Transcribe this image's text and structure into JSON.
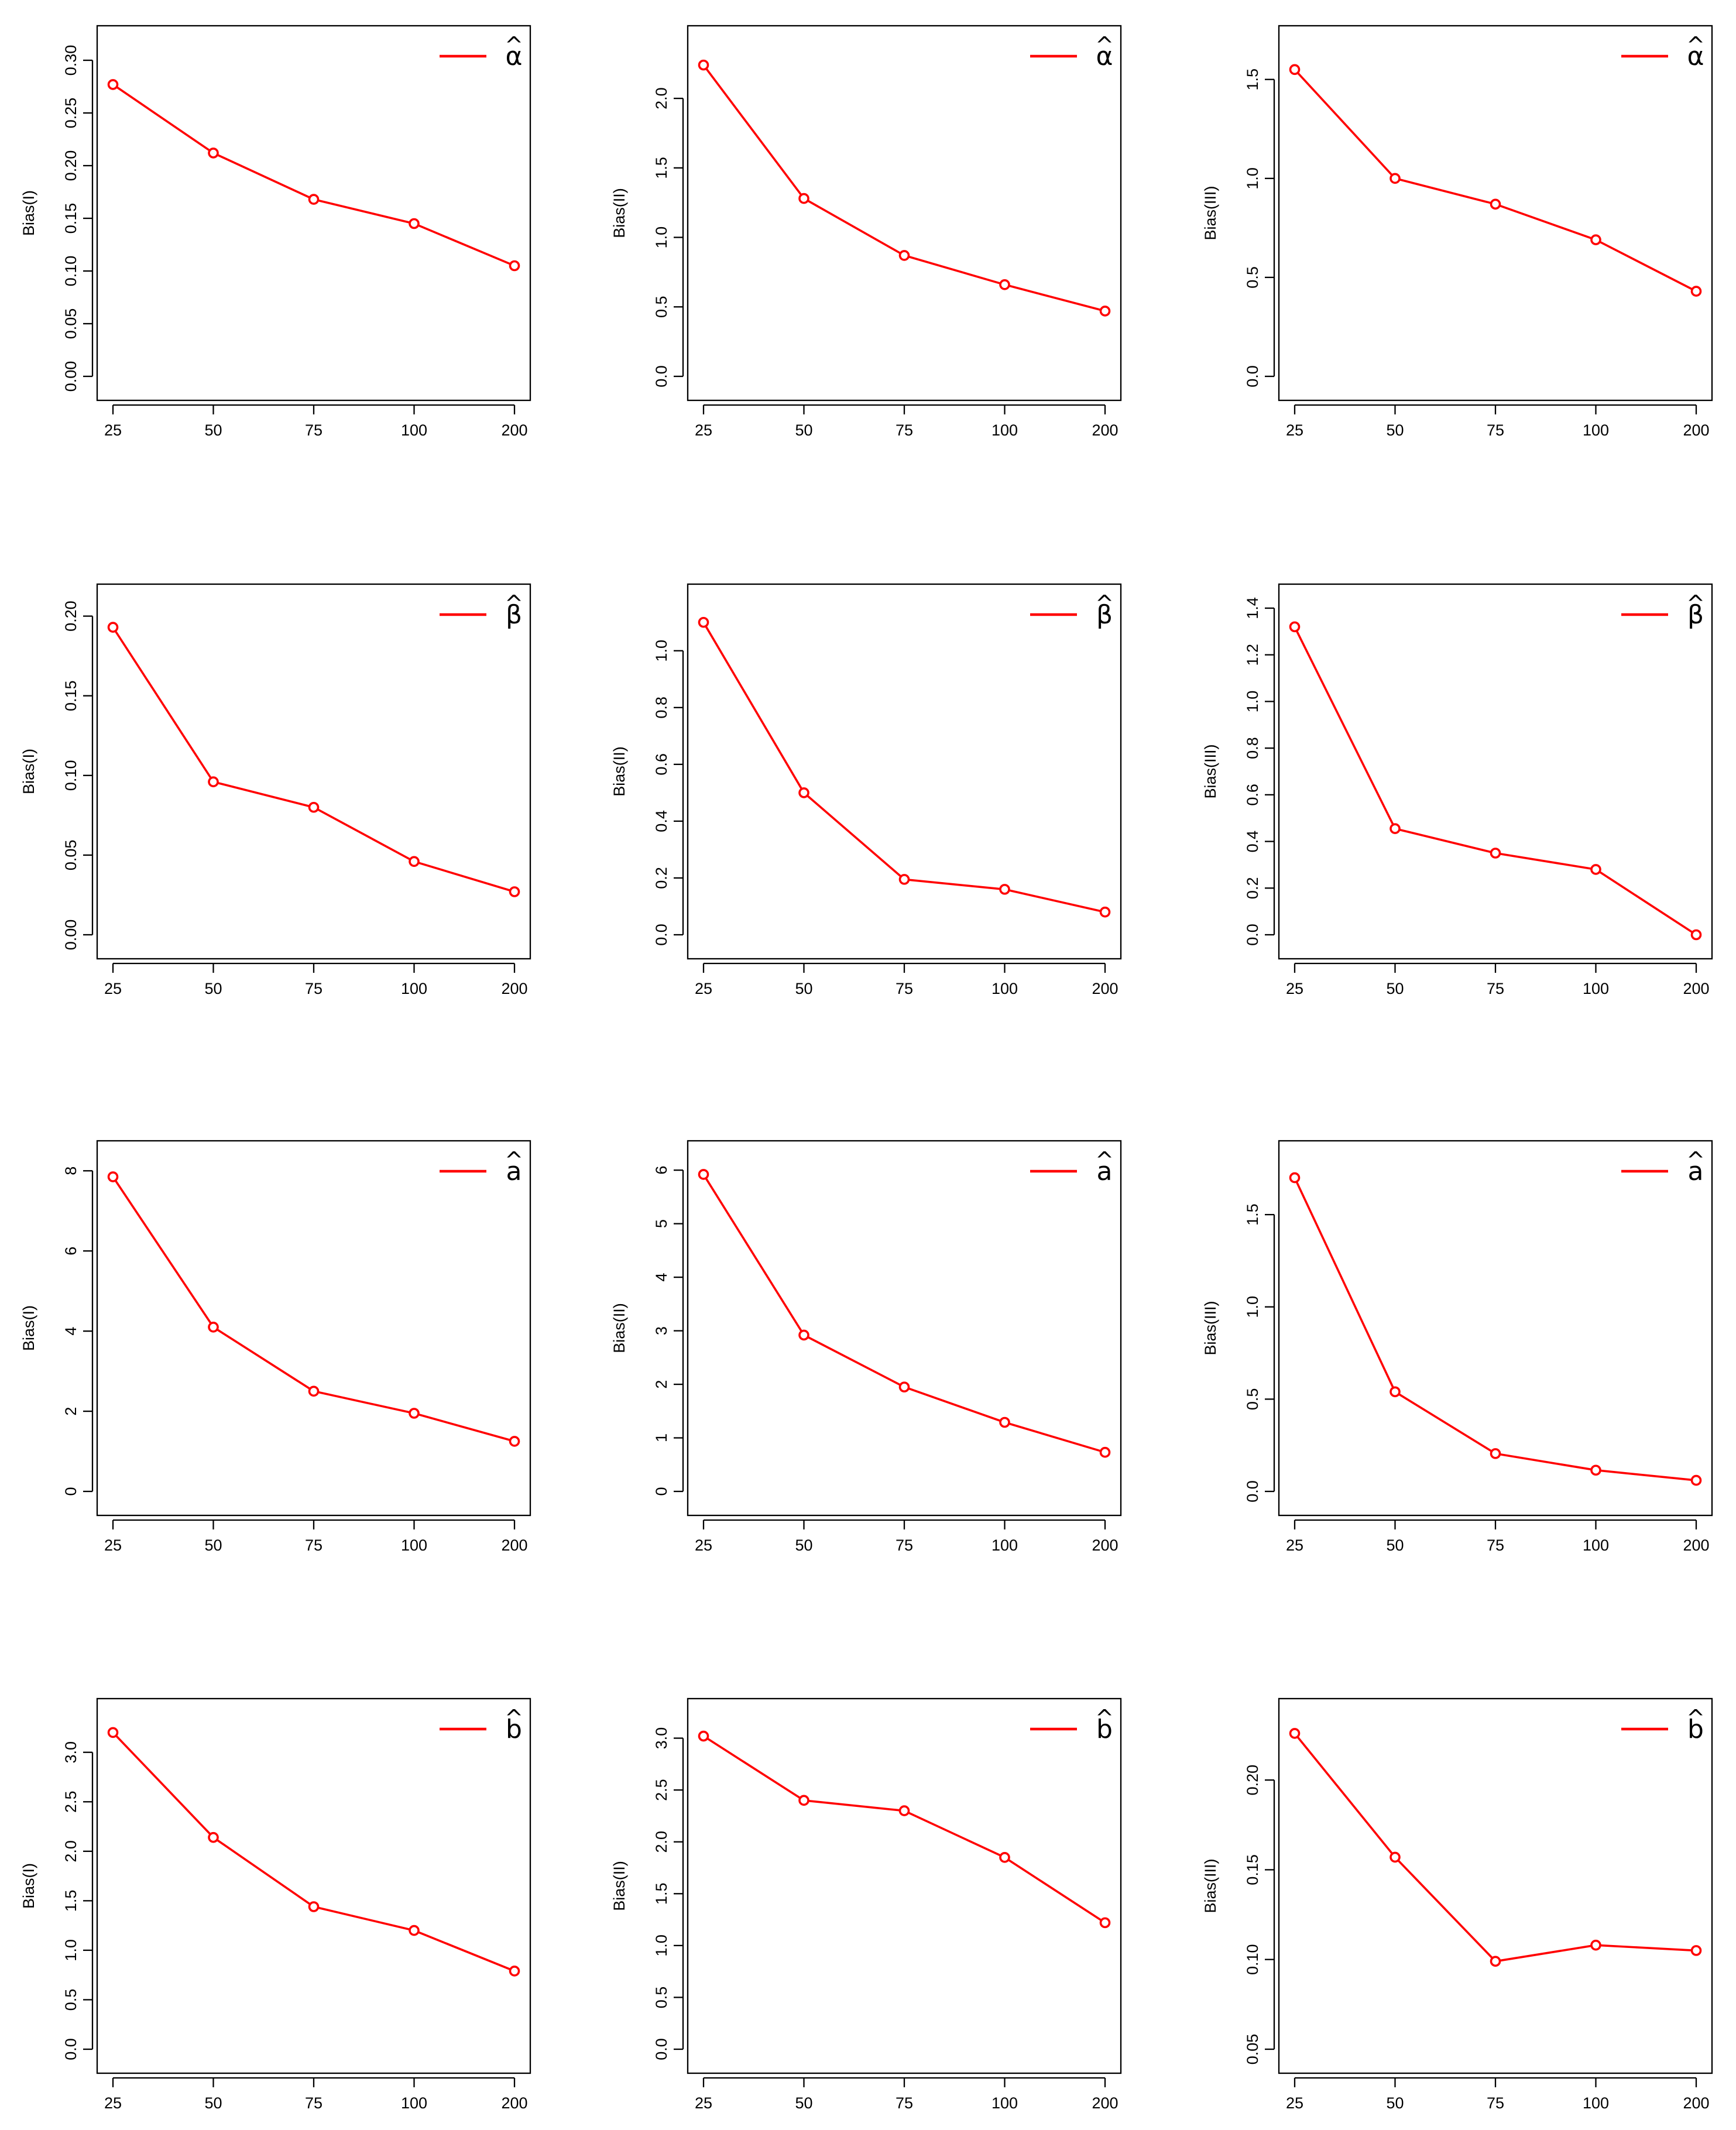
{
  "chart_data": [
    {
      "type": "line",
      "ylabel": "Bias(I)",
      "legend": "α",
      "hat": "^",
      "color": "#ff0000",
      "categories": [
        "25",
        "50",
        "75",
        "100",
        "200"
      ],
      "values": [
        0.277,
        0.212,
        0.168,
        0.145,
        0.105
      ],
      "ylim": [
        0,
        0.31
      ],
      "yticks": [
        0.0,
        0.05,
        0.1,
        0.15,
        0.2,
        0.25,
        0.3
      ],
      "ytick_labels": [
        "0.00",
        "0.05",
        "0.10",
        "0.15",
        "0.20",
        "0.25",
        "0.30"
      ]
    },
    {
      "type": "line",
      "ylabel": "Bias(II)",
      "legend": "α",
      "hat": "^",
      "color": "#ff0000",
      "categories": [
        "25",
        "50",
        "75",
        "100",
        "200"
      ],
      "values": [
        2.24,
        1.28,
        0.87,
        0.66,
        0.47
      ],
      "ylim": [
        0,
        2.35
      ],
      "yticks": [
        0.0,
        0.5,
        1.0,
        1.5,
        2.0
      ],
      "ytick_labels": [
        "0.0",
        "0.5",
        "1.0",
        "1.5",
        "2.0"
      ]
    },
    {
      "type": "line",
      "ylabel": "Bias(III)",
      "legend": "α",
      "hat": "^",
      "color": "#ff0000",
      "categories": [
        "25",
        "50",
        "75",
        "100",
        "200"
      ],
      "values": [
        1.55,
        1.0,
        0.87,
        0.69,
        0.43
      ],
      "ylim": [
        0,
        1.65
      ],
      "yticks": [
        0.0,
        0.5,
        1.0,
        1.5
      ],
      "ytick_labels": [
        "0.0",
        "0.5",
        "1.0",
        "1.5"
      ]
    },
    {
      "type": "line",
      "ylabel": "Bias(I)",
      "legend": "β",
      "hat": "^",
      "color": "#ff0000",
      "categories": [
        "25",
        "50",
        "75",
        "100",
        "200"
      ],
      "values": [
        0.193,
        0.096,
        0.08,
        0.046,
        0.027
      ],
      "ylim": [
        0,
        0.205
      ],
      "yticks": [
        0.0,
        0.05,
        0.1,
        0.15,
        0.2
      ],
      "ytick_labels": [
        "0.00",
        "0.05",
        "0.10",
        "0.15",
        "0.20"
      ]
    },
    {
      "type": "line",
      "ylabel": "Bias(II)",
      "legend": "β",
      "hat": "^",
      "color": "#ff0000",
      "categories": [
        "25",
        "50",
        "75",
        "100",
        "200"
      ],
      "values": [
        1.1,
        0.5,
        0.195,
        0.16,
        0.08
      ],
      "ylim": [
        0,
        1.15
      ],
      "yticks": [
        0.0,
        0.2,
        0.4,
        0.6,
        0.8,
        1.0
      ],
      "ytick_labels": [
        "0.0",
        "0.2",
        "0.4",
        "0.6",
        "0.8",
        "1.0"
      ]
    },
    {
      "type": "line",
      "ylabel": "Bias(III)",
      "legend": "β",
      "hat": "^",
      "color": "#ff0000",
      "categories": [
        "25",
        "50",
        "75",
        "100",
        "200"
      ],
      "values": [
        1.32,
        0.455,
        0.35,
        0.28,
        0.0
      ],
      "ylim": [
        0,
        1.4
      ],
      "yticks": [
        0.0,
        0.2,
        0.4,
        0.6,
        0.8,
        1.0,
        1.2,
        1.4
      ],
      "ytick_labels": [
        "0.0",
        "0.2",
        "0.4",
        "0.6",
        "0.8",
        "1.0",
        "1.2",
        "1.4"
      ]
    },
    {
      "type": "line",
      "ylabel": "Bias(I)",
      "legend": "a",
      "hat": "^",
      "color": "#ff0000",
      "categories": [
        "25",
        "50",
        "75",
        "100",
        "200"
      ],
      "values": [
        7.85,
        4.1,
        2.5,
        1.95,
        1.25
      ],
      "ylim": [
        0,
        8.15
      ],
      "yticks": [
        0,
        2,
        4,
        6,
        8
      ],
      "ytick_labels": [
        "0",
        "2",
        "4",
        "6",
        "8"
      ]
    },
    {
      "type": "line",
      "ylabel": "Bias(II)",
      "legend": "a",
      "hat": "^",
      "color": "#ff0000",
      "categories": [
        "25",
        "50",
        "75",
        "100",
        "200"
      ],
      "values": [
        5.92,
        2.92,
        1.95,
        1.29,
        0.73
      ],
      "ylim": [
        0,
        6.1
      ],
      "yticks": [
        0,
        1,
        2,
        3,
        4,
        5,
        6
      ],
      "ytick_labels": [
        "0",
        "1",
        "2",
        "3",
        "4",
        "5",
        "6"
      ]
    },
    {
      "type": "line",
      "ylabel": "Bias(III)",
      "legend": "a",
      "hat": "^",
      "color": "#ff0000",
      "categories": [
        "25",
        "50",
        "75",
        "100",
        "200"
      ],
      "values": [
        1.7,
        0.54,
        0.205,
        0.115,
        0.06
      ],
      "ylim": [
        0,
        1.77
      ],
      "yticks": [
        0.0,
        0.5,
        1.0,
        1.5
      ],
      "ytick_labels": [
        "0.0",
        "0.5",
        "1.0",
        "1.5"
      ]
    },
    {
      "type": "line",
      "ylabel": "Bias(I)",
      "legend": "b",
      "hat": "^",
      "color": "#ff0000",
      "categories": [
        "25",
        "50",
        "75",
        "100",
        "200"
      ],
      "values": [
        3.2,
        2.14,
        1.44,
        1.2,
        0.79
      ],
      "ylim": [
        0,
        3.3
      ],
      "yticks": [
        0.0,
        0.5,
        1.0,
        1.5,
        2.0,
        2.5,
        3.0
      ],
      "ytick_labels": [
        "0.0",
        "0.5",
        "1.0",
        "1.5",
        "2.0",
        "2.5",
        "3.0"
      ]
    },
    {
      "type": "line",
      "ylabel": "Bias(II)",
      "legend": "b",
      "hat": "^",
      "color": "#ff0000",
      "categories": [
        "25",
        "50",
        "75",
        "100",
        "200"
      ],
      "values": [
        3.02,
        2.4,
        2.3,
        1.85,
        1.22
      ],
      "ylim": [
        0,
        3.15
      ],
      "yticks": [
        0.0,
        0.5,
        1.0,
        1.5,
        2.0,
        2.5,
        3.0
      ],
      "ytick_labels": [
        "0.0",
        "0.5",
        "1.0",
        "1.5",
        "2.0",
        "2.5",
        "3.0"
      ]
    },
    {
      "type": "line",
      "ylabel": "Bias(III)",
      "legend": "b",
      "hat": "^",
      "color": "#ff0000",
      "categories": [
        "25",
        "50",
        "75",
        "100",
        "200"
      ],
      "values": [
        0.226,
        0.157,
        0.099,
        0.108,
        0.105
      ],
      "ylim": [
        0.05,
        0.232
      ],
      "yticks": [
        0.05,
        0.1,
        0.15,
        0.2
      ],
      "ytick_labels": [
        "0.05",
        "0.10",
        "0.15",
        "0.20"
      ]
    }
  ]
}
